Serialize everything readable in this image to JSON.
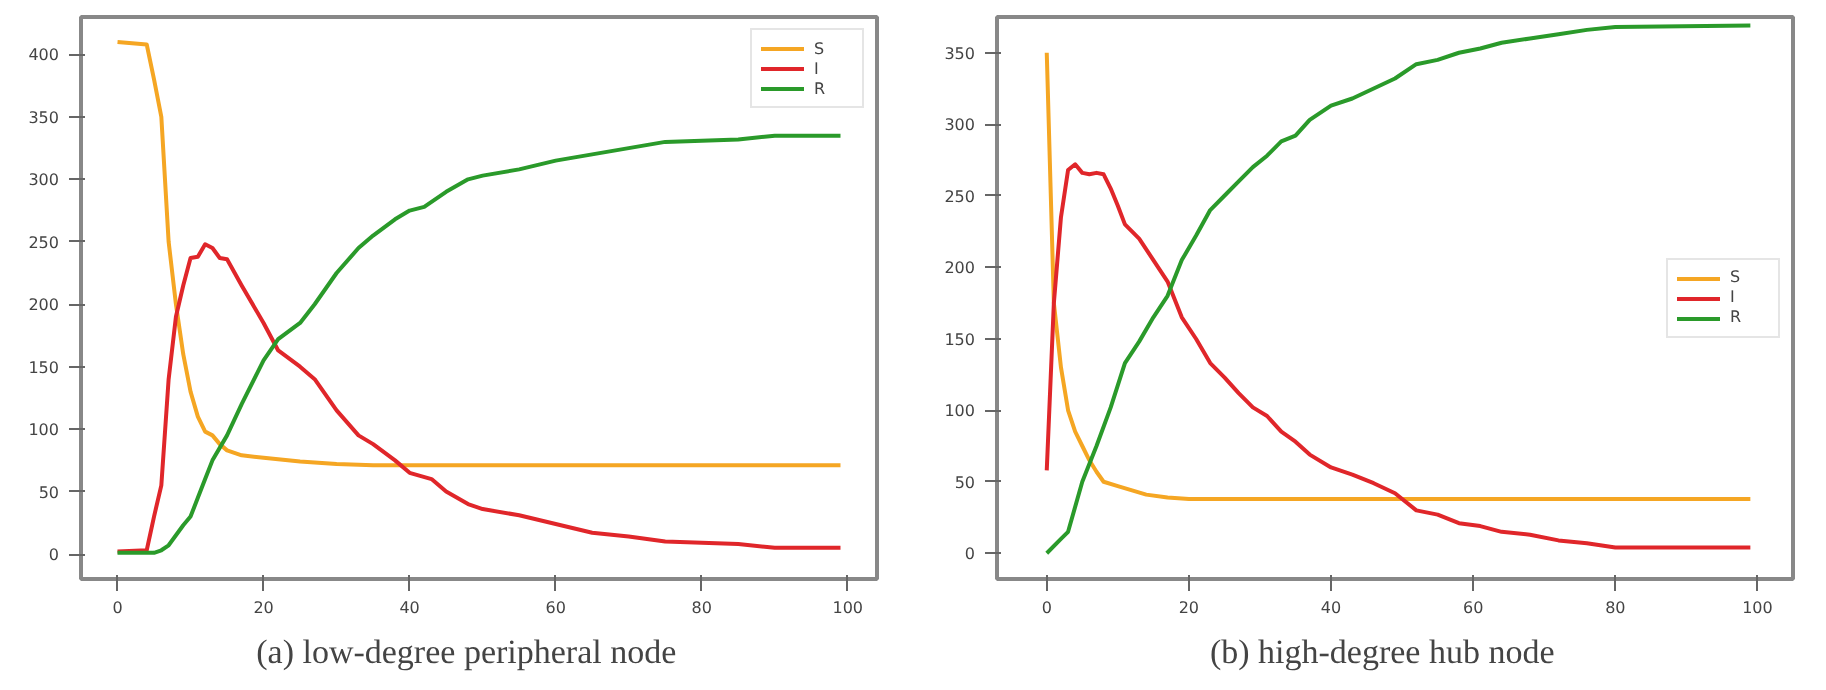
{
  "chart_data": [
    {
      "type": "line",
      "title": "(a)    low-degree peripheral node",
      "legend": "top right",
      "grid": false,
      "xlim": [
        -5,
        104
      ],
      "ylim": [
        -20,
        430
      ],
      "xticks": [
        0,
        20,
        40,
        60,
        80,
        100
      ],
      "yticks": [
        0,
        50,
        100,
        150,
        200,
        250,
        300,
        350,
        400
      ],
      "series": [
        {
          "name": "S",
          "color": "#f5a623",
          "x": [
            0,
            4,
            5,
            6,
            7,
            8,
            9,
            10,
            11,
            12,
            13,
            14,
            15,
            17,
            20,
            25,
            30,
            35,
            99
          ],
          "values": [
            410,
            408,
            380,
            350,
            250,
            200,
            160,
            130,
            110,
            98,
            95,
            88,
            83,
            79,
            77,
            74,
            72,
            71,
            71
          ]
        },
        {
          "name": "I",
          "color": "#e0262a",
          "x": [
            0,
            4,
            5,
            6,
            7,
            8,
            9,
            10,
            11,
            12,
            13,
            14,
            15,
            17,
            20,
            22,
            25,
            27,
            30,
            33,
            35,
            38,
            40,
            43,
            45,
            48,
            50,
            55,
            60,
            65,
            70,
            75,
            80,
            85,
            90,
            99
          ],
          "values": [
            2,
            3,
            30,
            55,
            140,
            190,
            215,
            237,
            238,
            248,
            245,
            237,
            236,
            215,
            185,
            163,
            150,
            140,
            115,
            95,
            88,
            75,
            65,
            60,
            50,
            40,
            36,
            31,
            24,
            17,
            14,
            10,
            9,
            8,
            5,
            5
          ]
        },
        {
          "name": "R",
          "color": "#2a9a2a",
          "x": [
            0,
            5,
            6,
            7,
            8,
            9,
            10,
            11,
            12,
            13,
            15,
            17,
            20,
            22,
            25,
            27,
            30,
            33,
            35,
            38,
            40,
            42,
            45,
            48,
            50,
            55,
            60,
            65,
            70,
            75,
            80,
            85,
            90,
            99
          ],
          "values": [
            1,
            1,
            3,
            7,
            15,
            23,
            30,
            45,
            60,
            75,
            95,
            120,
            155,
            172,
            185,
            200,
            225,
            245,
            255,
            268,
            275,
            278,
            290,
            300,
            303,
            308,
            315,
            320,
            325,
            330,
            331,
            332,
            335,
            335
          ]
        }
      ]
    },
    {
      "type": "line",
      "title": "(b)    high-degree hub node",
      "legend": "right",
      "grid": false,
      "xlim": [
        -7,
        105
      ],
      "ylim": [
        -18,
        375
      ],
      "xticks": [
        0,
        20,
        40,
        60,
        80,
        100
      ],
      "yticks": [
        0,
        50,
        100,
        150,
        200,
        250,
        300,
        350
      ],
      "series": [
        {
          "name": "S",
          "color": "#f5a623",
          "x": [
            0,
            1,
            2,
            3,
            4,
            5,
            6,
            7,
            8,
            10,
            12,
            14,
            17,
            20,
            99
          ],
          "values": [
            350,
            175,
            130,
            100,
            85,
            75,
            65,
            57,
            50,
            47,
            44,
            41,
            39,
            38,
            38
          ]
        },
        {
          "name": "I",
          "color": "#e0262a",
          "x": [
            0,
            1,
            2,
            3,
            4,
            5,
            6,
            7,
            8,
            9,
            10,
            11,
            13,
            15,
            17,
            19,
            21,
            23,
            25,
            27,
            29,
            31,
            33,
            35,
            37,
            40,
            43,
            46,
            49,
            52,
            55,
            58,
            61,
            64,
            68,
            72,
            76,
            80,
            99
          ],
          "values": [
            58,
            175,
            235,
            268,
            272,
            266,
            265,
            266,
            265,
            255,
            243,
            230,
            220,
            205,
            190,
            165,
            150,
            133,
            123,
            112,
            102,
            96,
            85,
            78,
            69,
            60,
            55,
            49,
            42,
            30,
            27,
            21,
            19,
            15,
            13,
            9,
            7,
            4,
            4
          ]
        },
        {
          "name": "R",
          "color": "#2a9a2a",
          "x": [
            0,
            2,
            3,
            5,
            7,
            9,
            11,
            13,
            15,
            17,
            19,
            21,
            23,
            25,
            27,
            29,
            31,
            33,
            35,
            37,
            40,
            43,
            46,
            49,
            52,
            55,
            58,
            61,
            64,
            68,
            72,
            76,
            80,
            99
          ],
          "values": [
            0,
            10,
            15,
            50,
            75,
            102,
            133,
            148,
            165,
            180,
            205,
            222,
            240,
            250,
            260,
            270,
            278,
            288,
            292,
            303,
            313,
            318,
            325,
            332,
            342,
            345,
            350,
            353,
            357,
            360,
            363,
            366,
            368,
            369
          ]
        }
      ]
    }
  ]
}
